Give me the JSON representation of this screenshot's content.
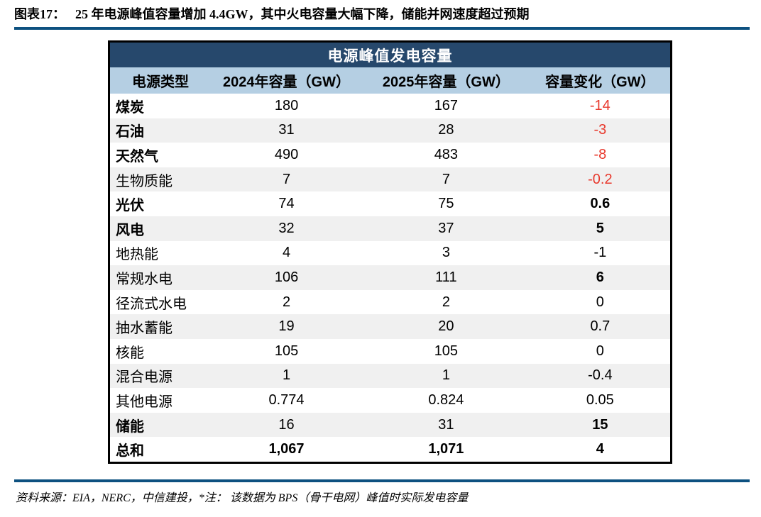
{
  "caption": {
    "label": "图表17：",
    "text": "25 年电源峰值容量增加 4.4GW，其中火电容量大幅下降，储能并网速度超过预期"
  },
  "footer": {
    "text": "资料来源：EIA，NERC，中信建投，*注： 该数据为 BPS（骨干电网）峰值时实际发电容量"
  },
  "colors": {
    "header_bg": "#26486c",
    "subheader_bg": "#b5cfe3",
    "row_alt_bg": "#f0f0f0",
    "negative_red": "#e8392d",
    "rule_navy": "#0d5180",
    "border_black": "#000000"
  },
  "table": {
    "title": "电源峰值发电容量",
    "columns": [
      "电源类型",
      "2024年容量（GW）",
      "2025年容量（GW）",
      "容量变化（GW）"
    ],
    "rows": [
      {
        "label": "煤炭",
        "y2024": "180",
        "y2025": "167",
        "change": "-14",
        "label_bold": true,
        "values_bold": false,
        "change_bold": false,
        "change_red": true
      },
      {
        "label": "石油",
        "y2024": "31",
        "y2025": "28",
        "change": "-3",
        "label_bold": true,
        "values_bold": false,
        "change_bold": false,
        "change_red": true
      },
      {
        "label": "天然气",
        "y2024": "490",
        "y2025": "483",
        "change": "-8",
        "label_bold": true,
        "values_bold": false,
        "change_bold": false,
        "change_red": true
      },
      {
        "label": "生物质能",
        "y2024": "7",
        "y2025": "7",
        "change": "-0.2",
        "label_bold": false,
        "values_bold": false,
        "change_bold": false,
        "change_red": true
      },
      {
        "label": "光伏",
        "y2024": "74",
        "y2025": "75",
        "change": "0.6",
        "label_bold": true,
        "values_bold": false,
        "change_bold": true,
        "change_red": false
      },
      {
        "label": "风电",
        "y2024": "32",
        "y2025": "37",
        "change": "5",
        "label_bold": true,
        "values_bold": false,
        "change_bold": true,
        "change_red": false
      },
      {
        "label": "地热能",
        "y2024": "4",
        "y2025": "3",
        "change": "-1",
        "label_bold": false,
        "values_bold": false,
        "change_bold": false,
        "change_red": false
      },
      {
        "label": "常规水电",
        "y2024": "106",
        "y2025": "111",
        "change": "6",
        "label_bold": false,
        "values_bold": false,
        "change_bold": true,
        "change_red": false
      },
      {
        "label": "径流式水电",
        "y2024": "2",
        "y2025": "2",
        "change": "0",
        "label_bold": false,
        "values_bold": false,
        "change_bold": false,
        "change_red": false
      },
      {
        "label": "抽水蓄能",
        "y2024": "19",
        "y2025": "20",
        "change": "0.7",
        "label_bold": false,
        "values_bold": false,
        "change_bold": false,
        "change_red": false
      },
      {
        "label": "核能",
        "y2024": "105",
        "y2025": "105",
        "change": "0",
        "label_bold": false,
        "values_bold": false,
        "change_bold": false,
        "change_red": false
      },
      {
        "label": "混合电源",
        "y2024": "1",
        "y2025": "1",
        "change": "-0.4",
        "label_bold": false,
        "values_bold": false,
        "change_bold": false,
        "change_red": false
      },
      {
        "label": "其他电源",
        "y2024": "0.774",
        "y2025": "0.824",
        "change": "0.05",
        "label_bold": false,
        "values_bold": false,
        "change_bold": false,
        "change_red": false
      },
      {
        "label": "储能",
        "y2024": "16",
        "y2025": "31",
        "change": "15",
        "label_bold": true,
        "values_bold": false,
        "change_bold": true,
        "change_red": false
      },
      {
        "label": "总和",
        "y2024": "1,067",
        "y2025": "1,071",
        "change": "4",
        "label_bold": true,
        "values_bold": true,
        "change_bold": true,
        "change_red": false
      }
    ]
  },
  "chart_data": {
    "type": "table",
    "title": "电源峰值发电容量",
    "columns": [
      "电源类型",
      "2024年容量（GW）",
      "2025年容量（GW）",
      "容量变化（GW）"
    ],
    "rows": [
      [
        "煤炭",
        180,
        167,
        -14
      ],
      [
        "石油",
        31,
        28,
        -3
      ],
      [
        "天然气",
        490,
        483,
        -8
      ],
      [
        "生物质能",
        7,
        7,
        -0.2
      ],
      [
        "光伏",
        74,
        75,
        0.6
      ],
      [
        "风电",
        32,
        37,
        5
      ],
      [
        "地热能",
        4,
        3,
        -1
      ],
      [
        "常规水电",
        106,
        111,
        6
      ],
      [
        "径流式水电",
        2,
        2,
        0
      ],
      [
        "抽水蓄能",
        19,
        20,
        0.7
      ],
      [
        "核能",
        105,
        105,
        0
      ],
      [
        "混合电源",
        1,
        1,
        -0.4
      ],
      [
        "其他电源",
        0.774,
        0.824,
        0.05
      ],
      [
        "储能",
        16,
        31,
        15
      ],
      [
        "总和",
        1067,
        1071,
        4
      ]
    ],
    "notes": "负值变化（前四行）以红色显示；数据来源：EIA，NERC，中信建投"
  }
}
